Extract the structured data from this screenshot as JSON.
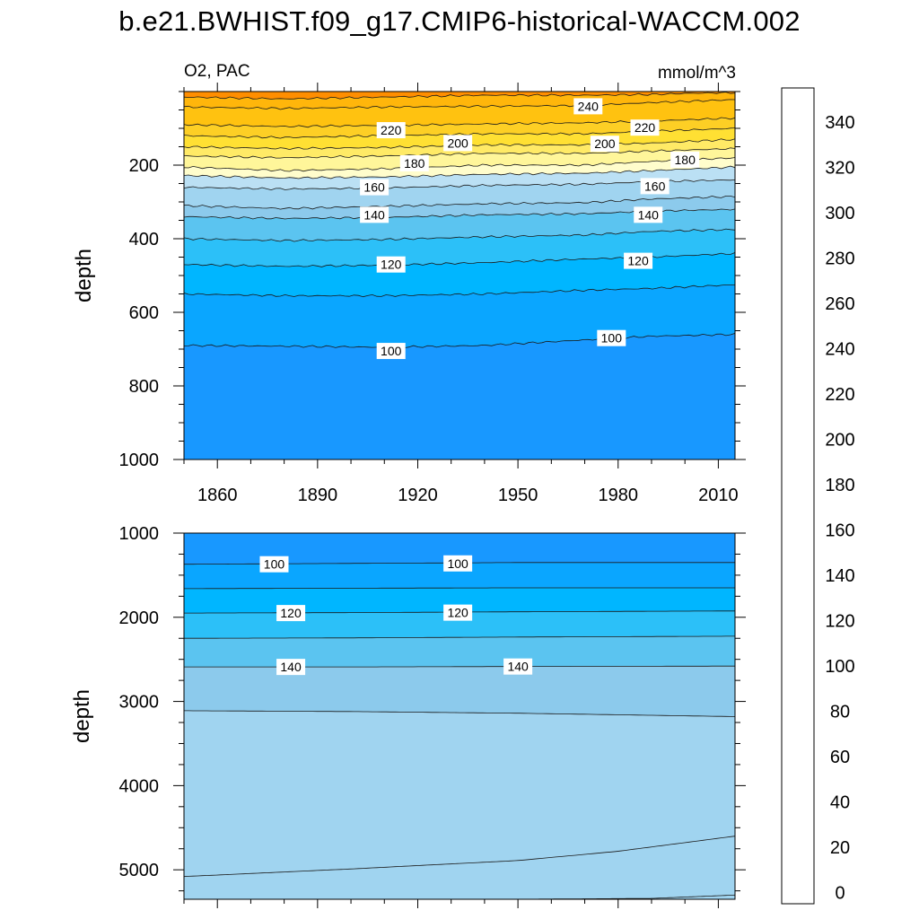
{
  "title": "b.e21.BWHIST.f09_g17.CMIP6-historical-WACCM.002",
  "chart_data": [
    {
      "type": "heatmap",
      "panel": "top",
      "left_label": "O2, PAC",
      "right_label": "mmol/m^3",
      "xlabel": "",
      "ylabel": "depth",
      "xlim": [
        1850,
        2015
      ],
      "ylim": [
        0,
        1000
      ],
      "y_reversed": true,
      "x_ticks": [
        "1860",
        "1890",
        "1920",
        "1950",
        "1980",
        "2010"
      ],
      "y_ticks": [
        "200",
        "400",
        "600",
        "800",
        "1000"
      ],
      "grid": false,
      "contours": [
        {
          "level": 240,
          "x": [
            1850,
            1880,
            1910,
            1940,
            1970,
            1990,
            2000,
            2015
          ],
          "depth": [
            15,
            20,
            15,
            10,
            10,
            8,
            5,
            3
          ]
        },
        {
          "level": 230,
          "x": [
            1850,
            1880,
            1910,
            1940,
            1970,
            1990,
            2015
          ],
          "depth": [
            42,
            46,
            42,
            40,
            38,
            30,
            22
          ]
        },
        {
          "level": 220,
          "x": [
            1850,
            1880,
            1910,
            1940,
            1970,
            1990,
            2015
          ],
          "depth": [
            90,
            95,
            92,
            88,
            85,
            80,
            72
          ]
        },
        {
          "level": 210,
          "x": [
            1850,
            1880,
            1910,
            1940,
            1970,
            1990,
            2015
          ],
          "depth": [
            120,
            125,
            120,
            115,
            115,
            108,
            100
          ]
        },
        {
          "level": 200,
          "x": [
            1850,
            1880,
            1910,
            1940,
            1970,
            1990,
            2015
          ],
          "depth": [
            150,
            155,
            152,
            145,
            145,
            140,
            130
          ]
        },
        {
          "level": 190,
          "x": [
            1850,
            1880,
            1910,
            1940,
            1970,
            1990,
            2015
          ],
          "depth": [
            175,
            180,
            175,
            168,
            168,
            162,
            155
          ]
        },
        {
          "level": 180,
          "x": [
            1850,
            1880,
            1910,
            1940,
            1970,
            1990,
            2015
          ],
          "depth": [
            205,
            215,
            210,
            200,
            200,
            190,
            180
          ]
        },
        {
          "level": 170,
          "x": [
            1850,
            1880,
            1910,
            1940,
            1970,
            1990,
            2015
          ],
          "depth": [
            228,
            235,
            232,
            225,
            222,
            215,
            205
          ]
        },
        {
          "level": 160,
          "x": [
            1850,
            1880,
            1910,
            1940,
            1970,
            1990,
            2015
          ],
          "depth": [
            260,
            265,
            262,
            255,
            252,
            245,
            240
          ]
        },
        {
          "level": 150,
          "x": [
            1850,
            1880,
            1910,
            1940,
            1970,
            1990,
            2015
          ],
          "depth": [
            310,
            318,
            312,
            305,
            302,
            292,
            285
          ]
        },
        {
          "level": 140,
          "x": [
            1850,
            1880,
            1910,
            1940,
            1970,
            1990,
            2015
          ],
          "depth": [
            340,
            345,
            342,
            335,
            332,
            325,
            320
          ]
        },
        {
          "level": 130,
          "x": [
            1850,
            1880,
            1910,
            1940,
            1970,
            1990,
            2015
          ],
          "depth": [
            400,
            405,
            402,
            395,
            390,
            380,
            375
          ]
        },
        {
          "level": 120,
          "x": [
            1850,
            1880,
            1910,
            1940,
            1970,
            1990,
            2015
          ],
          "depth": [
            470,
            475,
            472,
            465,
            455,
            450,
            440
          ]
        },
        {
          "level": 110,
          "x": [
            1850,
            1880,
            1910,
            1940,
            1970,
            1990,
            2015
          ],
          "depth": [
            550,
            555,
            555,
            550,
            540,
            535,
            525
          ]
        },
        {
          "level": 100,
          "x": [
            1850,
            1880,
            1910,
            1940,
            1970,
            1990,
            2015
          ],
          "depth": [
            690,
            692,
            695,
            690,
            675,
            665,
            660
          ]
        }
      ],
      "contour_labels": [
        {
          "text": "240",
          "x": 1971,
          "depth": 40
        },
        {
          "text": "220",
          "x": 1912,
          "depth": 105
        },
        {
          "text": "220",
          "x": 1988,
          "depth": 98
        },
        {
          "text": "200",
          "x": 1932,
          "depth": 140
        },
        {
          "text": "200",
          "x": 1976,
          "depth": 142
        },
        {
          "text": "180",
          "x": 1919,
          "depth": 195
        },
        {
          "text": "180",
          "x": 2000,
          "depth": 185
        },
        {
          "text": "160",
          "x": 1907,
          "depth": 260
        },
        {
          "text": "160",
          "x": 1991,
          "depth": 257
        },
        {
          "text": "140",
          "x": 1907,
          "depth": 335
        },
        {
          "text": "140",
          "x": 1989,
          "depth": 335
        },
        {
          "text": "120",
          "x": 1912,
          "depth": 470
        },
        {
          "text": "120",
          "x": 1986,
          "depth": 460
        },
        {
          "text": "100",
          "x": 1912,
          "depth": 705
        },
        {
          "text": "100",
          "x": 1978,
          "depth": 670
        }
      ]
    },
    {
      "type": "heatmap",
      "panel": "bottom",
      "xlabel": "",
      "ylabel": "depth",
      "xlim": [
        1850,
        2015
      ],
      "ylim": [
        1000,
        5350
      ],
      "y_reversed": true,
      "y_ticks": [
        "1000",
        "2000",
        "3000",
        "4000",
        "5000"
      ],
      "grid": false,
      "contours": [
        {
          "level": 100,
          "x": [
            1850,
            1900,
            1950,
            2015
          ],
          "depth": [
            1370,
            1360,
            1350,
            1350
          ]
        },
        {
          "level": 110,
          "x": [
            1850,
            1900,
            1950,
            2015
          ],
          "depth": [
            1660,
            1655,
            1650,
            1650
          ]
        },
        {
          "level": 120,
          "x": [
            1850,
            1900,
            1950,
            2015
          ],
          "depth": [
            1950,
            1945,
            1935,
            1925
          ]
        },
        {
          "level": 130,
          "x": [
            1850,
            1900,
            1950,
            2015
          ],
          "depth": [
            2250,
            2245,
            2235,
            2225
          ]
        },
        {
          "level": 140,
          "x": [
            1850,
            1900,
            1950,
            2015
          ],
          "depth": [
            2590,
            2590,
            2585,
            2580
          ]
        },
        {
          "level": 150,
          "x": [
            1850,
            1900,
            1950,
            2015
          ],
          "depth": [
            3110,
            3120,
            3140,
            3180
          ]
        },
        {
          "level": 160,
          "x": [
            1850,
            1900,
            1950,
            1980,
            2015
          ],
          "depth": [
            5080,
            4990,
            4890,
            4780,
            4600
          ]
        },
        {
          "level": 150,
          "x": [
            1950,
            1990,
            2015
          ],
          "depth": [
            5350,
            5340,
            5300
          ]
        }
      ],
      "contour_labels": [
        {
          "text": "100",
          "x": 1877,
          "depth": 1370
        },
        {
          "text": "100",
          "x": 1932,
          "depth": 1360
        },
        {
          "text": "120",
          "x": 1882,
          "depth": 1950
        },
        {
          "text": "120",
          "x": 1932,
          "depth": 1945
        },
        {
          "text": "140",
          "x": 1882,
          "depth": 2590
        },
        {
          "text": "140",
          "x": 1950,
          "depth": 2585
        }
      ]
    }
  ],
  "colorbar": {
    "tick_labels": [
      "0",
      "20",
      "40",
      "60",
      "80",
      "100",
      "120",
      "140",
      "160",
      "180",
      "200",
      "220",
      "240",
      "260",
      "280",
      "300",
      "320",
      "340"
    ],
    "colors": [
      "#7B1FE6",
      "#5A22F0",
      "#3C1EF5",
      "#1010FF",
      "#1C38E6",
      "#2F55E0",
      "#3A6AE0",
      "#2B73EE",
      "#1E8BF7",
      "#1898FF",
      "#0AA6FF",
      "#00B6FF",
      "#2CC0F8",
      "#5BC4F0",
      "#8CCAEC",
      "#A0D4F0",
      "#BBE0F4",
      "#FFFDCC",
      "#FFF69A",
      "#FFEA66",
      "#FFE033",
      "#FDCF25",
      "#FFC210",
      "#FFB60B",
      "#FFA500",
      "#FF8E00",
      "#FF7500",
      "#FF5E00",
      "#FF3A00",
      "#FF1A0E",
      "#F00000",
      "#E40000",
      "#CA0000",
      "#D92B2B",
      "#EE7272",
      "#FCB2B5"
    ]
  }
}
